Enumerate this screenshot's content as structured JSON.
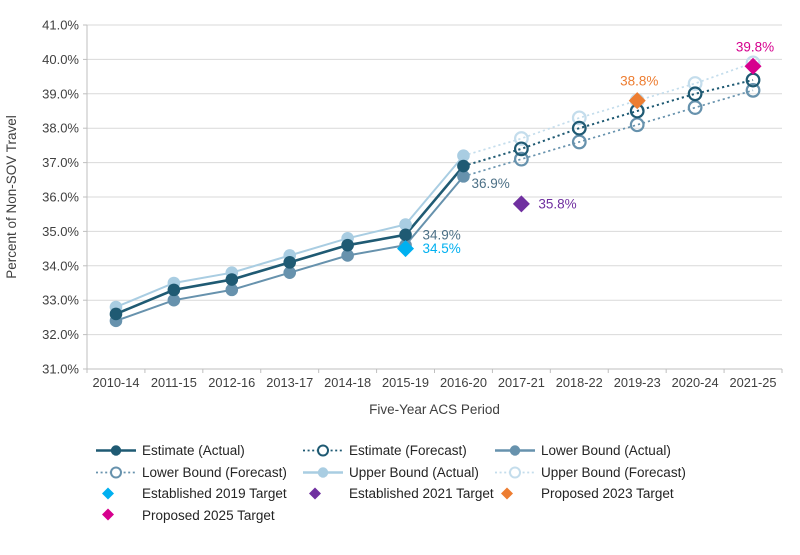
{
  "chart_data": {
    "type": "line",
    "title": "",
    "xlabel": "Five-Year ACS Period",
    "ylabel": "Percent of Non-SOV Travel",
    "categories": [
      "2010-14",
      "2011-15",
      "2012-16",
      "2013-17",
      "2014-18",
      "2015-19",
      "2016-20",
      "2017-21",
      "2018-22",
      "2019-23",
      "2020-24",
      "2021-25"
    ],
    "ylim": [
      31.0,
      41.0
    ],
    "ytick_step": 1.0,
    "ytick_labels": [
      "41.0%",
      "40.0%",
      "39.0%",
      "38.0%",
      "37.0%",
      "36.0%",
      "35.0%",
      "34.0%",
      "33.0%",
      "32.0%",
      "31.0%"
    ],
    "grid": "horizontal",
    "legend_position": "bottom",
    "series": [
      {
        "name": "Upper Bound (Actual)",
        "style": "solid",
        "marker": "filled",
        "color": "#A9CDE2",
        "line_width": 2,
        "start_index": 0,
        "values": [
          32.8,
          33.5,
          33.8,
          34.3,
          34.8,
          35.2,
          37.2
        ]
      },
      {
        "name": "Lower Bound (Actual)",
        "style": "solid",
        "marker": "filled",
        "color": "#6792AD",
        "line_width": 2,
        "start_index": 0,
        "values": [
          32.4,
          33.0,
          33.3,
          33.8,
          34.3,
          34.6,
          36.6
        ]
      },
      {
        "name": "Estimate (Actual)",
        "style": "solid",
        "marker": "filled",
        "color": "#1F5A73",
        "line_width": 2.6,
        "start_index": 0,
        "values": [
          32.6,
          33.3,
          33.6,
          34.1,
          34.6,
          34.9,
          36.9
        ]
      },
      {
        "name": "Upper Bound (Forecast)",
        "style": "dotted",
        "marker": "open",
        "color": "#C4DDEC",
        "line_width": 1.7,
        "start_index": 6,
        "values": [
          37.2,
          37.7,
          38.3,
          38.8,
          39.3,
          39.9
        ]
      },
      {
        "name": "Lower Bound (Forecast)",
        "style": "dotted",
        "marker": "open",
        "color": "#6792AD",
        "line_width": 1.7,
        "start_index": 6,
        "values": [
          36.6,
          37.1,
          37.6,
          38.1,
          38.6,
          39.1
        ]
      },
      {
        "name": "Estimate (Forecast)",
        "style": "dotted",
        "marker": "open",
        "color": "#1F5A73",
        "line_width": 2,
        "start_index": 6,
        "values": [
          36.9,
          37.4,
          38.0,
          38.5,
          39.0,
          39.4
        ]
      }
    ],
    "targets": [
      {
        "name": "Established 2019 Target",
        "category": "2015-19",
        "value": 34.5,
        "color": "#00B0F0",
        "label": "34.5%",
        "label_placement": "right"
      },
      {
        "name": "Established 2021 Target",
        "category": "2017-21",
        "value": 35.8,
        "color": "#7030A0",
        "label": "35.8%",
        "label_placement": "right"
      },
      {
        "name": "Proposed 2023 Target",
        "category": "2019-23",
        "value": 38.8,
        "color": "#ED7D31",
        "label": "38.8%",
        "label_placement": "above"
      },
      {
        "name": "Proposed 2025 Target",
        "category": "2021-25",
        "value": 39.8,
        "color": "#D6008E",
        "label": "39.8%",
        "label_placement": "above"
      }
    ],
    "annotations": [
      {
        "text": "34.9%",
        "category": "2015-19",
        "value": 34.9,
        "color": "#4C7086",
        "placement": "right"
      },
      {
        "text": "36.9%",
        "category": "2016-20",
        "value": 36.9,
        "color": "#4C7086",
        "placement": "below-right"
      }
    ],
    "colors": {
      "grid": "#D9D9D9",
      "axis": "#BFBFBF",
      "tick_text": "#404040",
      "axis_title_text": "#404040"
    }
  },
  "legend": {
    "items": [
      {
        "label": "Estimate (Actual)",
        "marker": "line-filled",
        "color": "#1F5A73"
      },
      {
        "label": "Estimate (Forecast)",
        "marker": "line-open-dotted",
        "color": "#1F5A73"
      },
      {
        "label": "Lower Bound (Actual)",
        "marker": "line-filled",
        "color": "#6792AD"
      },
      {
        "label": "Lower Bound (Forecast)",
        "marker": "line-open-dotted",
        "color": "#6792AD"
      },
      {
        "label": "Upper Bound (Actual)",
        "marker": "line-filled",
        "color": "#A9CDE2"
      },
      {
        "label": "Upper Bound (Forecast)",
        "marker": "line-open-dotted",
        "color": "#C4DDEC"
      },
      {
        "label": "Established 2019 Target",
        "marker": "diamond",
        "color": "#00B0F0"
      },
      {
        "label": "Established 2021 Target",
        "marker": "diamond",
        "color": "#7030A0"
      },
      {
        "label": "Proposed 2023 Target",
        "marker": "diamond",
        "color": "#ED7D31"
      },
      {
        "label": "Proposed 2025 Target",
        "marker": "diamond",
        "color": "#D6008E"
      }
    ]
  }
}
